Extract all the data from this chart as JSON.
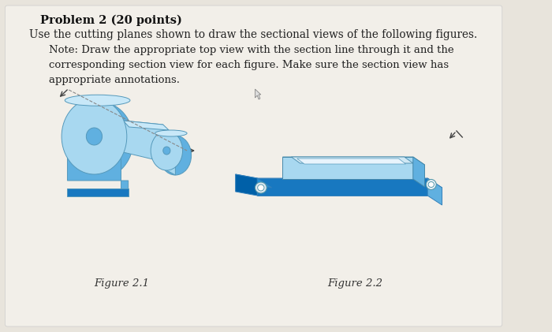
{
  "bg_color": "#e8e4dc",
  "panel_color": "#f2efe9",
  "title": "Problem 2 (20 points)",
  "line1": "Use the cutting planes shown to draw the sectional views of the following figures.",
  "note": "Note: Draw the appropriate top view with the section line through it and the\ncorresponding section view for each figure. Make sure the section view has\nappropriate annotations.",
  "fig1_label": "Figure 2.1",
  "fig2_label": "Figure 2.2",
  "title_fontsize": 10.5,
  "body_fontsize": 9.8,
  "note_fontsize": 9.5,
  "label_fontsize": 9.5,
  "blue_bright": "#2090d8",
  "blue_light": "#a8d8f0",
  "blue_mid": "#60b0e0",
  "blue_dark": "#1878c0",
  "blue_top": "#c8e8f8",
  "blue_face": "#80c4e8",
  "blue_deep": "#0060a8"
}
